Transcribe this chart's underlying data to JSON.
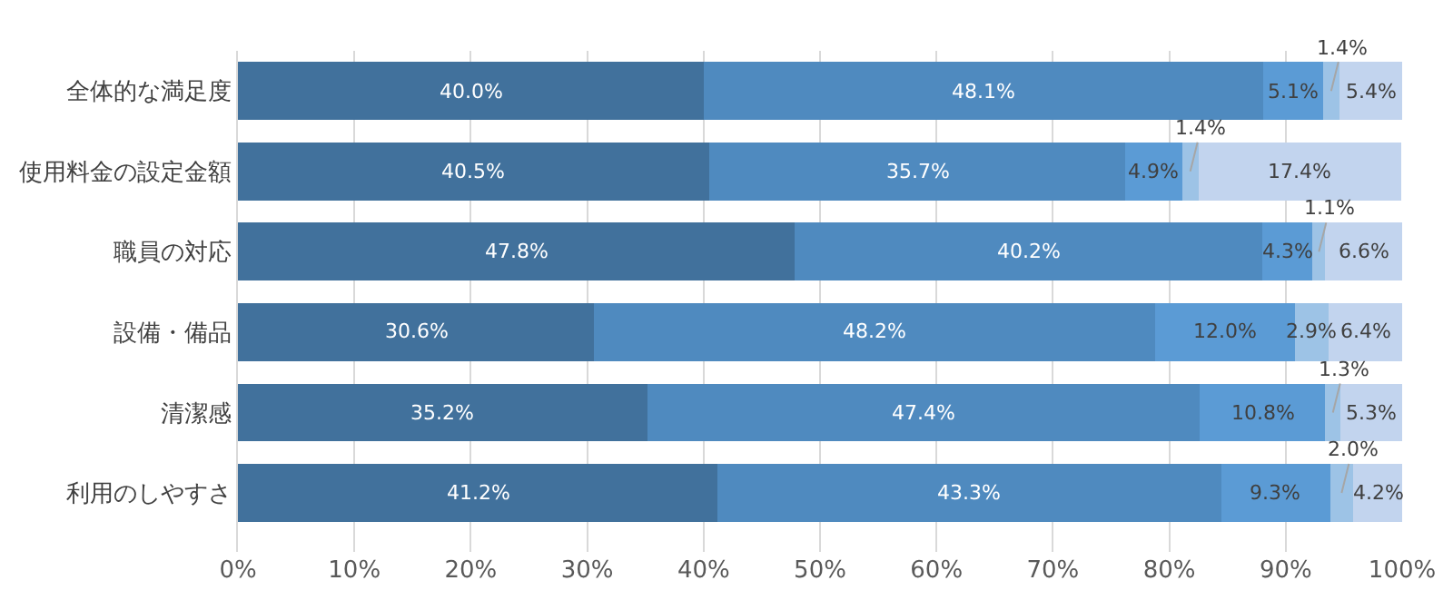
{
  "chart_data": {
    "type": "bar",
    "orientation": "horizontal",
    "stacked": true,
    "grid": "x",
    "categories": [
      "全体的な満足度",
      "使用料金の設定金額",
      "職員の対応",
      "設備・備品",
      "清潔感",
      "利用のしやすさ"
    ],
    "xlim": [
      0,
      100
    ],
    "xticks": [
      {
        "value": 0,
        "label": "0%"
      },
      {
        "value": 10,
        "label": "10%"
      },
      {
        "value": 20,
        "label": "20%"
      },
      {
        "value": 30,
        "label": "30%"
      },
      {
        "value": 40,
        "label": "40%"
      },
      {
        "value": 50,
        "label": "50%"
      },
      {
        "value": 60,
        "label": "60%"
      },
      {
        "value": 70,
        "label": "70%"
      },
      {
        "value": 80,
        "label": "80%"
      },
      {
        "value": 90,
        "label": "90%"
      },
      {
        "value": 100,
        "label": "100%"
      }
    ],
    "series": [
      {
        "color": "#41719c",
        "values": [
          40.0,
          40.5,
          47.8,
          30.6,
          35.2,
          41.2
        ],
        "value_labels": [
          "40.0%",
          "40.5%",
          "47.8%",
          "30.6%",
          "35.2%",
          "41.2%"
        ]
      },
      {
        "color": "#4f8abf",
        "values": [
          48.1,
          35.7,
          40.2,
          48.2,
          47.4,
          43.3
        ],
        "value_labels": [
          "48.1%",
          "35.7%",
          "40.2%",
          "48.2%",
          "47.4%",
          "43.3%"
        ]
      },
      {
        "color": "#5b9bd5",
        "values": [
          5.1,
          4.9,
          4.3,
          12.0,
          10.8,
          9.3
        ],
        "value_labels": [
          "5.1%",
          "4.9%",
          "4.3%",
          "12.0%",
          "10.8%",
          "9.3%"
        ]
      },
      {
        "color": "#9dc3e6",
        "values": [
          1.4,
          1.4,
          1.1,
          2.9,
          1.3,
          2.0
        ],
        "value_labels": [
          "1.4%",
          "1.4%",
          "1.1%",
          "2.9%",
          "1.3%",
          "2.0%"
        ]
      },
      {
        "color": "#c2d4ee",
        "values": [
          5.4,
          17.4,
          6.6,
          6.4,
          5.3,
          4.2
        ],
        "value_labels": [
          "5.4%",
          "17.4%",
          "6.6%",
          "6.4%",
          "5.3%",
          "4.2%"
        ]
      }
    ]
  }
}
